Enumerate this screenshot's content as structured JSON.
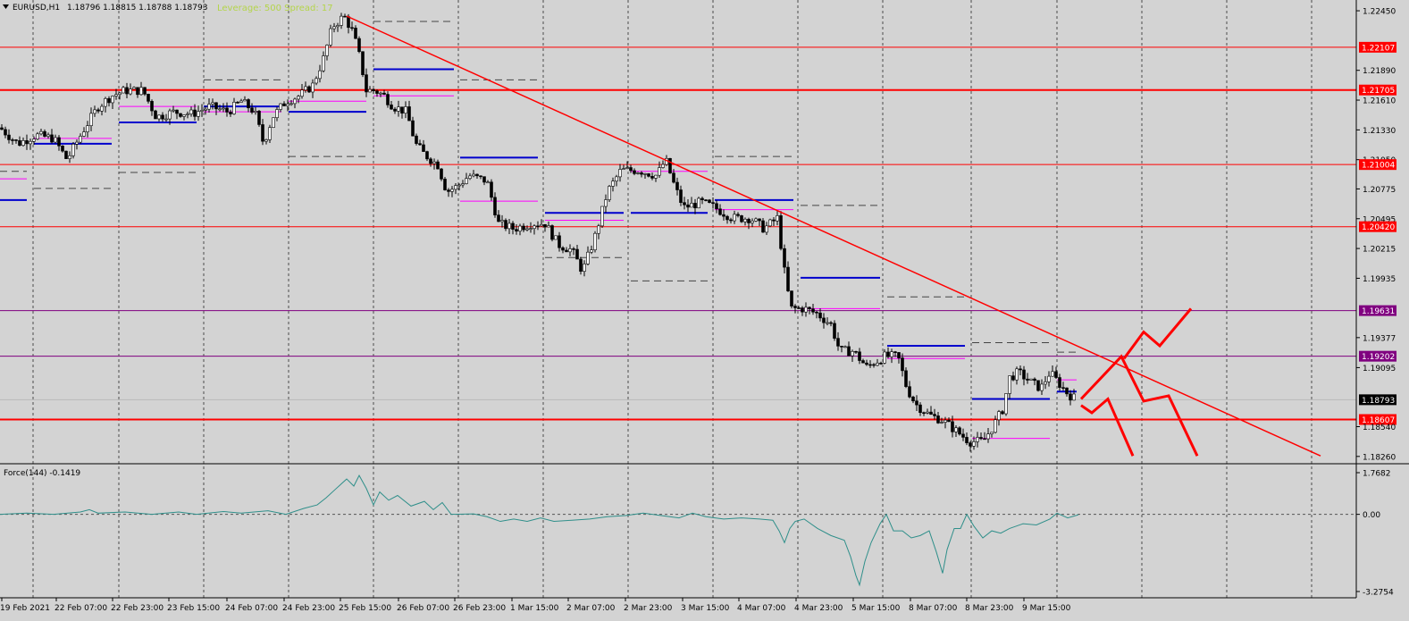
{
  "header": {
    "symbol": "EURUSD,H1",
    "ohlc": "1.18796 1.18815 1.18788 1.18793",
    "leverage": "Leverage: 500 Spread: 17"
  },
  "indicator": {
    "label": "Force(144) -0.1419",
    "ticks": [
      "1.7682",
      "0.00",
      "-3.2754"
    ]
  },
  "colors": {
    "background": "#d3d3d3",
    "bull_candle": "#ffffff",
    "bear_candle": "#000000",
    "resistance_line": "#ff0000",
    "purple_line": "#800080",
    "trend_line": "#ff0000",
    "blue_level": "#0000cd",
    "magenta_level": "#ff00ff",
    "force_line": "#2f8f8a"
  },
  "chart_data": {
    "type": "candlestick",
    "price_axis_ticks": [
      "1.22450",
      "1.22107",
      "1.21890",
      "1.21705",
      "1.21610",
      "1.21330",
      "1.21050",
      "1.21004",
      "1.20775",
      "1.20495",
      "1.20420",
      "1.20215",
      "1.19935",
      "1.19631",
      "1.19377",
      "1.19202",
      "1.19095",
      "1.18793",
      "1.18607",
      "1.18540",
      "1.18260"
    ],
    "horizontal_levels": [
      {
        "label": "1.22107",
        "color": "#ff0000",
        "bold": false
      },
      {
        "label": "1.21705",
        "color": "#ff0000",
        "bold": true
      },
      {
        "label": "1.21004",
        "color": "#ff0000",
        "bold": false
      },
      {
        "label": "1.20420",
        "color": "#ff0000",
        "bold": false
      },
      {
        "label": "1.19631",
        "color": "#800080",
        "bold": false
      },
      {
        "label": "1.19202",
        "color": "#800080",
        "bold": false
      },
      {
        "label": "1.18607",
        "color": "#ff0000",
        "bold": true
      }
    ],
    "current_price": "1.18793",
    "time_axis": [
      "19 Feb 2021",
      "22 Feb 07:00",
      "22 Feb 23:00",
      "23 Feb 15:00",
      "24 Feb 07:00",
      "24 Feb 23:00",
      "25 Feb 15:00",
      "26 Feb 07:00",
      "26 Feb 23:00",
      "1 Mar 15:00",
      "2 Mar 07:00",
      "2 Mar 23:00",
      "3 Mar 15:00",
      "4 Mar 07:00",
      "4 Mar 23:00",
      "5 Mar 15:00",
      "8 Mar 07:00",
      "8 Mar 23:00",
      "9 Mar 15:00"
    ],
    "close_path": [
      [
        0,
        1.2135
      ],
      [
        20,
        1.212
      ],
      [
        40,
        1.2128
      ],
      [
        60,
        1.2125
      ],
      [
        75,
        1.2105
      ],
      [
        95,
        1.2135
      ],
      [
        110,
        1.2155
      ],
      [
        125,
        1.2165
      ],
      [
        140,
        1.217
      ],
      [
        160,
        1.217
      ],
      [
        175,
        1.2145
      ],
      [
        195,
        1.215
      ],
      [
        215,
        1.2148
      ],
      [
        235,
        1.2155
      ],
      [
        255,
        1.215
      ],
      [
        270,
        1.216
      ],
      [
        285,
        1.215
      ],
      [
        295,
        1.212
      ],
      [
        305,
        1.2145
      ],
      [
        320,
        1.216
      ],
      [
        335,
        1.2165
      ],
      [
        350,
        1.2175
      ],
      [
        362,
        1.22
      ],
      [
        372,
        1.223
      ],
      [
        385,
        1.224
      ],
      [
        395,
        1.2225
      ],
      [
        403,
        1.22
      ],
      [
        410,
        1.217
      ],
      [
        420,
        1.217
      ],
      [
        430,
        1.2165
      ],
      [
        440,
        1.2155
      ],
      [
        455,
        1.215
      ],
      [
        465,
        1.212
      ],
      [
        475,
        1.211
      ],
      [
        490,
        1.21
      ],
      [
        500,
        1.2075
      ],
      [
        512,
        1.208
      ],
      [
        525,
        1.209
      ],
      [
        545,
        1.2085
      ],
      [
        558,
        1.2045
      ],
      [
        575,
        1.204
      ],
      [
        595,
        1.2045
      ],
      [
        610,
        1.2045
      ],
      [
        625,
        1.2025
      ],
      [
        640,
        1.202
      ],
      [
        652,
        1.2
      ],
      [
        665,
        1.203
      ],
      [
        680,
        1.2075
      ],
      [
        695,
        1.2095
      ],
      [
        715,
        1.2095
      ],
      [
        735,
        1.209
      ],
      [
        745,
        1.2105
      ],
      [
        755,
        1.208
      ],
      [
        765,
        1.206
      ],
      [
        785,
        1.2065
      ],
      [
        800,
        1.206
      ],
      [
        820,
        1.205
      ],
      [
        840,
        1.205
      ],
      [
        855,
        1.204
      ],
      [
        870,
        1.205
      ],
      [
        878,
        1.2
      ],
      [
        885,
        1.1965
      ],
      [
        900,
        1.1965
      ],
      [
        915,
        1.196
      ],
      [
        930,
        1.195
      ],
      [
        940,
        1.1925
      ],
      [
        955,
        1.1925
      ],
      [
        970,
        1.191
      ],
      [
        990,
        1.192
      ],
      [
        1005,
        1.192
      ],
      [
        1015,
        1.189
      ],
      [
        1025,
        1.1875
      ],
      [
        1040,
        1.1865
      ],
      [
        1055,
        1.186
      ],
      [
        1070,
        1.185
      ],
      [
        1085,
        1.184
      ],
      [
        1100,
        1.184
      ],
      [
        1112,
        1.1855
      ],
      [
        1122,
        1.187
      ],
      [
        1130,
        1.19
      ],
      [
        1140,
        1.1905
      ],
      [
        1155,
        1.1895
      ],
      [
        1165,
        1.189
      ],
      [
        1175,
        1.1905
      ],
      [
        1185,
        1.1895
      ],
      [
        1195,
        1.1885
      ],
      [
        1205,
        1.18793
      ]
    ],
    "range_levels_blue": [
      [
        0,
        1.2067,
        30
      ],
      [
        38,
        1.212,
        125
      ],
      [
        133,
        1.214,
        220
      ],
      [
        228,
        1.2155,
        315
      ],
      [
        323,
        1.215,
        410
      ],
      [
        418,
        1.219,
        508
      ],
      [
        515,
        1.2107,
        602
      ],
      [
        610,
        1.2055,
        698
      ],
      [
        706,
        1.2055,
        792
      ],
      [
        800,
        1.2067,
        888
      ],
      [
        896,
        1.1994,
        985
      ],
      [
        993,
        1.193,
        1080
      ],
      [
        1088,
        1.188,
        1175
      ],
      [
        1183,
        1.1887,
        1205
      ]
    ],
    "range_levels_magenta": [
      [
        0,
        1.2087,
        30
      ],
      [
        38,
        1.2125,
        125
      ],
      [
        133,
        1.2155,
        220
      ],
      [
        228,
        1.215,
        315
      ],
      [
        323,
        1.216,
        410
      ],
      [
        418,
        1.2165,
        508
      ],
      [
        515,
        1.2066,
        602
      ],
      [
        610,
        1.2048,
        698
      ],
      [
        706,
        1.2094,
        792
      ],
      [
        800,
        1.2058,
        888
      ],
      [
        896,
        1.1965,
        985
      ],
      [
        993,
        1.1918,
        1080
      ],
      [
        1088,
        1.1843,
        1175
      ],
      [
        1183,
        1.1898,
        1205
      ]
    ],
    "range_levels_dashed": [
      [
        0,
        1.2094,
        30
      ],
      [
        38,
        1.2078,
        125
      ],
      [
        133,
        1.2093,
        220
      ],
      [
        228,
        1.218,
        315
      ],
      [
        323,
        1.2108,
        410
      ],
      [
        418,
        1.2235,
        508
      ],
      [
        515,
        1.218,
        602
      ],
      [
        610,
        1.2013,
        698
      ],
      [
        706,
        1.1991,
        792
      ],
      [
        800,
        1.2108,
        888
      ],
      [
        896,
        1.2062,
        985
      ],
      [
        993,
        1.1976,
        1080
      ],
      [
        1088,
        1.1933,
        1175
      ],
      [
        1183,
        1.1924,
        1205
      ]
    ],
    "trend_line": [
      [
        388,
        1.224
      ],
      [
        1478,
        1.18265
      ]
    ],
    "scenario_lines": [
      [
        [
          1210,
          1.188
        ],
        [
          1255,
          1.192
        ],
        [
          1280,
          1.1878
        ],
        [
          1308,
          1.1883
        ],
        [
          1340,
          1.18265
        ]
      ],
      [
        [
          1210,
          1.1874
        ],
        [
          1222,
          1.1867
        ],
        [
          1240,
          1.188
        ],
        [
          1268,
          1.18265
        ]
      ],
      [
        [
          1258,
          1.1918
        ],
        [
          1280,
          1.1943
        ],
        [
          1298,
          1.193
        ],
        [
          1333,
          1.1965
        ]
      ]
    ],
    "force_path": [
      [
        0,
        0.0
      ],
      [
        30,
        0.05
      ],
      [
        60,
        0.0
      ],
      [
        90,
        0.1
      ],
      [
        100,
        0.2
      ],
      [
        110,
        0.05
      ],
      [
        140,
        0.1
      ],
      [
        170,
        0.0
      ],
      [
        200,
        0.1
      ],
      [
        220,
        0.0
      ],
      [
        250,
        0.12
      ],
      [
        270,
        0.05
      ],
      [
        300,
        0.15
      ],
      [
        320,
        0.0
      ],
      [
        340,
        0.25
      ],
      [
        355,
        0.4
      ],
      [
        365,
        0.7
      ],
      [
        375,
        1.05
      ],
      [
        388,
        1.5
      ],
      [
        396,
        1.2
      ],
      [
        402,
        1.65
      ],
      [
        410,
        1.1
      ],
      [
        418,
        0.4
      ],
      [
        425,
        0.95
      ],
      [
        435,
        0.6
      ],
      [
        445,
        0.8
      ],
      [
        460,
        0.35
      ],
      [
        475,
        0.55
      ],
      [
        485,
        0.2
      ],
      [
        495,
        0.5
      ],
      [
        505,
        0.0
      ],
      [
        530,
        0.02
      ],
      [
        545,
        -0.1
      ],
      [
        560,
        -0.3
      ],
      [
        575,
        -0.2
      ],
      [
        590,
        -0.3
      ],
      [
        605,
        -0.15
      ],
      [
        620,
        -0.3
      ],
      [
        640,
        -0.25
      ],
      [
        660,
        -0.2
      ],
      [
        680,
        -0.1
      ],
      [
        700,
        -0.05
      ],
      [
        720,
        0.05
      ],
      [
        740,
        -0.05
      ],
      [
        760,
        -0.15
      ],
      [
        775,
        0.05
      ],
      [
        790,
        -0.1
      ],
      [
        810,
        -0.2
      ],
      [
        830,
        -0.15
      ],
      [
        850,
        -0.2
      ],
      [
        865,
        -0.25
      ],
      [
        872,
        -0.7
      ],
      [
        878,
        -1.2
      ],
      [
        884,
        -0.6
      ],
      [
        890,
        -0.3
      ],
      [
        900,
        -0.2
      ],
      [
        915,
        -0.6
      ],
      [
        930,
        -0.9
      ],
      [
        945,
        -1.1
      ],
      [
        952,
        -1.8
      ],
      [
        958,
        -2.6
      ],
      [
        962,
        -3.0
      ],
      [
        968,
        -2.0
      ],
      [
        975,
        -1.2
      ],
      [
        985,
        -0.4
      ],
      [
        992,
        0.0
      ],
      [
        1000,
        -0.7
      ],
      [
        1010,
        -0.7
      ],
      [
        1020,
        -1.0
      ],
      [
        1030,
        -0.9
      ],
      [
        1040,
        -0.7
      ],
      [
        1048,
        -1.6
      ],
      [
        1055,
        -2.5
      ],
      [
        1060,
        -1.5
      ],
      [
        1068,
        -0.6
      ],
      [
        1075,
        -0.6
      ],
      [
        1082,
        0.0
      ],
      [
        1090,
        -0.5
      ],
      [
        1100,
        -1.0
      ],
      [
        1110,
        -0.7
      ],
      [
        1120,
        -0.8
      ],
      [
        1130,
        -0.6
      ],
      [
        1145,
        -0.4
      ],
      [
        1160,
        -0.45
      ],
      [
        1175,
        -0.2
      ],
      [
        1183,
        0.05
      ],
      [
        1195,
        -0.15
      ],
      [
        1207,
        -0.02
      ]
    ],
    "price_ylim": [
      1.18208,
      1.22526
    ],
    "force_ylim": [
      -3.2754,
      1.7682
    ]
  }
}
